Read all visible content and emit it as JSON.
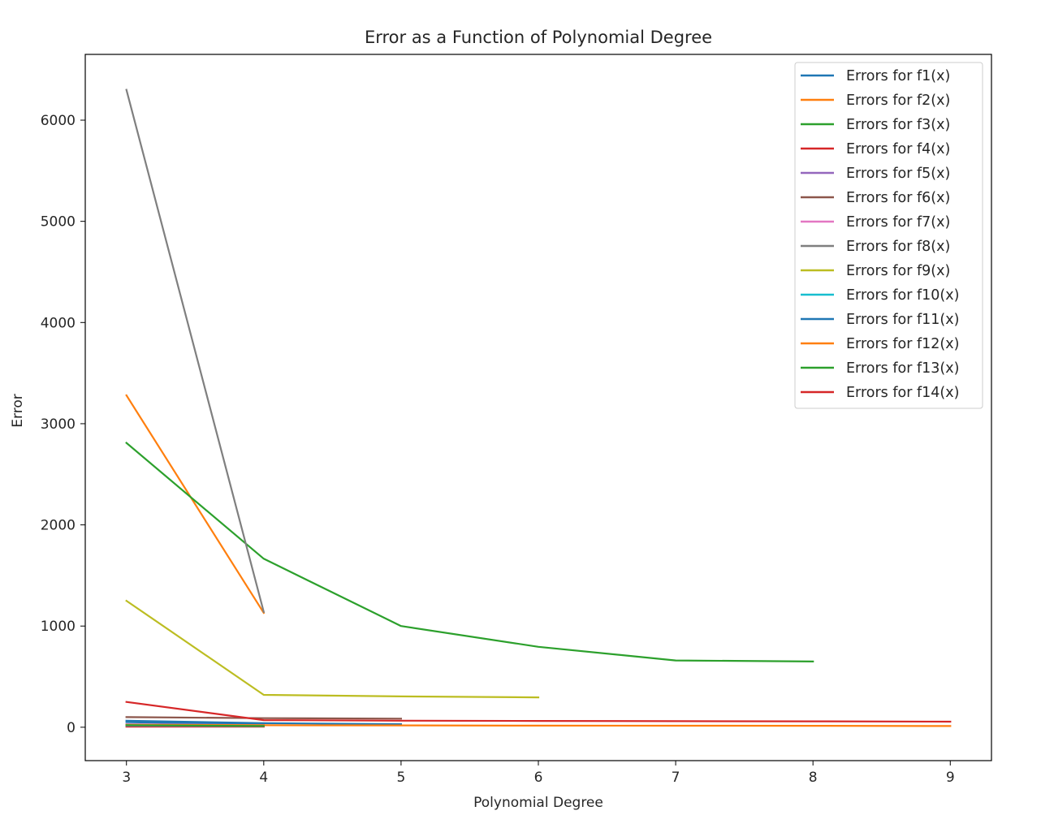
{
  "chart_data": {
    "type": "line",
    "title": "Error as a Function of Polynomial Degree",
    "xlabel": "Polynomial Degree",
    "ylabel": "Error",
    "xlim": [
      2.7,
      9.3
    ],
    "ylim": [
      -330,
      6650
    ],
    "xticks": [
      3,
      4,
      5,
      6,
      7,
      8,
      9
    ],
    "yticks": [
      0,
      1000,
      2000,
      3000,
      4000,
      5000,
      6000
    ],
    "grid": false,
    "legend_position": "top-right",
    "series": [
      {
        "name": "Errors for f1(x)",
        "color": "#1f77b4",
        "x": [
          3,
          4
        ],
        "y": [
          50,
          25
        ]
      },
      {
        "name": "Errors for f2(x)",
        "color": "#ff7f0e",
        "x": [
          3,
          4
        ],
        "y": [
          3280,
          1130
        ]
      },
      {
        "name": "Errors for f3(x)",
        "color": "#2ca02c",
        "x": [
          3,
          4,
          5,
          6,
          7,
          8
        ],
        "y": [
          2810,
          1665,
          1000,
          795,
          660,
          650
        ]
      },
      {
        "name": "Errors for f4(x)",
        "color": "#d62728",
        "x": [
          3,
          4
        ],
        "y": [
          5,
          5
        ]
      },
      {
        "name": "Errors for f5(x)",
        "color": "#9467bd",
        "x": [
          3,
          4
        ],
        "y": [
          15,
          10
        ]
      },
      {
        "name": "Errors for f6(x)",
        "color": "#8c564b",
        "x": [
          3,
          4,
          5
        ],
        "y": [
          100,
          90,
          85
        ]
      },
      {
        "name": "Errors for f7(x)",
        "color": "#e377c2",
        "x": [
          3,
          4
        ],
        "y": [
          30,
          20
        ]
      },
      {
        "name": "Errors for f8(x)",
        "color": "#7f7f7f",
        "x": [
          3,
          4
        ],
        "y": [
          6300,
          1140
        ]
      },
      {
        "name": "Errors for f9(x)",
        "color": "#bcbd22",
        "x": [
          3,
          4,
          5,
          6
        ],
        "y": [
          1250,
          320,
          305,
          295
        ]
      },
      {
        "name": "Errors for f10(x)",
        "color": "#17becf",
        "x": [
          3,
          4
        ],
        "y": [
          25,
          15
        ]
      },
      {
        "name": "Errors for f11(x)",
        "color": "#1f77b4",
        "x": [
          3,
          4,
          5
        ],
        "y": [
          65,
          40,
          30
        ]
      },
      {
        "name": "Errors for f12(x)",
        "color": "#ff7f0e",
        "x": [
          3,
          4,
          5,
          6,
          7,
          8,
          9
        ],
        "y": [
          25,
          20,
          18,
          16,
          15,
          14,
          12
        ]
      },
      {
        "name": "Errors for f13(x)",
        "color": "#2ca02c",
        "x": [
          3,
          4
        ],
        "y": [
          20,
          12
        ]
      },
      {
        "name": "Errors for f14(x)",
        "color": "#d62728",
        "x": [
          3,
          4,
          5,
          6,
          7,
          8,
          9
        ],
        "y": [
          250,
          70,
          65,
          62,
          60,
          58,
          55
        ]
      }
    ]
  }
}
